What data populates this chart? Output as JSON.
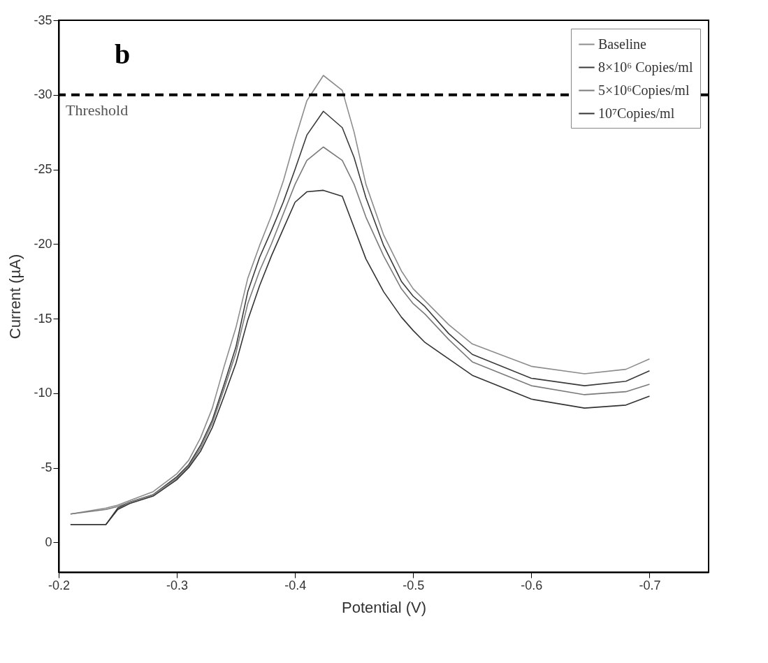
{
  "chart_data": {
    "type": "line",
    "xlabel": "Potential (V)",
    "ylabel": "Current (µA)",
    "xlim": [
      -0.2,
      -0.75
    ],
    "xticks": [
      -0.2,
      -0.3,
      -0.4,
      -0.5,
      -0.6,
      -0.7
    ],
    "ylim": [
      2,
      -35
    ],
    "yticks": [
      0,
      -5,
      -10,
      -15,
      -20,
      -25,
      -30,
      -35
    ],
    "grid": false,
    "legend": "top right",
    "marker": "none",
    "line_style": "solid",
    "x": [
      -0.21,
      -0.24,
      -0.25,
      -0.26,
      -0.28,
      -0.3,
      -0.31,
      -0.32,
      -0.33,
      -0.34,
      -0.35,
      -0.36,
      -0.37,
      -0.38,
      -0.39,
      -0.4,
      -0.41,
      -0.424,
      -0.44,
      -0.45,
      -0.46,
      -0.475,
      -0.49,
      -0.5,
      -0.51,
      -0.53,
      -0.55,
      -0.6,
      -0.645,
      -0.68,
      -0.7
    ],
    "series": [
      {
        "name": "Baseline",
        "color": "#8c8c8c",
        "values": [
          -1.9,
          -2.3,
          -2.5,
          -2.8,
          -3.4,
          -4.6,
          -5.5,
          -7.0,
          -9.0,
          -11.8,
          -14.4,
          -17.7,
          -19.9,
          -21.9,
          -24.2,
          -27.0,
          -29.6,
          -31.3,
          -30.3,
          -27.5,
          -24.0,
          -20.6,
          -18.2,
          -17.0,
          -16.2,
          -14.6,
          -13.3,
          -11.8,
          -11.3,
          -11.6,
          -12.3
        ]
      },
      {
        "name": "8×10⁶ Copies/ml",
        "color": "#3a3a3a",
        "values": [
          -1.2,
          -1.2,
          -2.3,
          -2.7,
          -3.2,
          -4.4,
          -5.2,
          -6.5,
          -8.2,
          -10.6,
          -13.1,
          -16.8,
          -19.1,
          -20.9,
          -22.8,
          -25.0,
          -27.3,
          -28.9,
          -27.8,
          -25.8,
          -23.1,
          -19.9,
          -17.5,
          -16.5,
          -15.8,
          -14.0,
          -12.6,
          -11.0,
          -10.5,
          -10.8,
          -11.5
        ]
      },
      {
        "name": "5×10⁶Copies/ml",
        "color": "#7a7a7a",
        "values": [
          -1.9,
          -2.2,
          -2.4,
          -2.7,
          -3.2,
          -4.3,
          -5.1,
          -6.3,
          -8.0,
          -10.3,
          -12.7,
          -16.0,
          -18.2,
          -20.0,
          -22.0,
          -24.0,
          -25.6,
          -26.5,
          -25.6,
          -24.0,
          -21.8,
          -19.2,
          -17.0,
          -16.0,
          -15.3,
          -13.6,
          -12.1,
          -10.5,
          -9.9,
          -10.1,
          -10.6
        ]
      },
      {
        "name": "10⁷Copies/ml",
        "color": "#333333",
        "values": [
          -1.2,
          -1.2,
          -2.2,
          -2.6,
          -3.1,
          -4.2,
          -5.0,
          -6.1,
          -7.7,
          -9.8,
          -12.0,
          -14.9,
          -17.2,
          -19.2,
          -21.0,
          -22.8,
          -23.5,
          -23.6,
          -23.2,
          -21.1,
          -19.0,
          -16.8,
          -15.1,
          -14.2,
          -13.4,
          -12.3,
          -11.2,
          -9.6,
          -9.0,
          -9.2,
          -9.8
        ]
      }
    ],
    "ref_lines": [
      {
        "axis": "y",
        "value": -30,
        "label": "Threshold",
        "color": "#000000",
        "line_style": "dashed"
      }
    ],
    "annotations": [
      "b"
    ]
  }
}
